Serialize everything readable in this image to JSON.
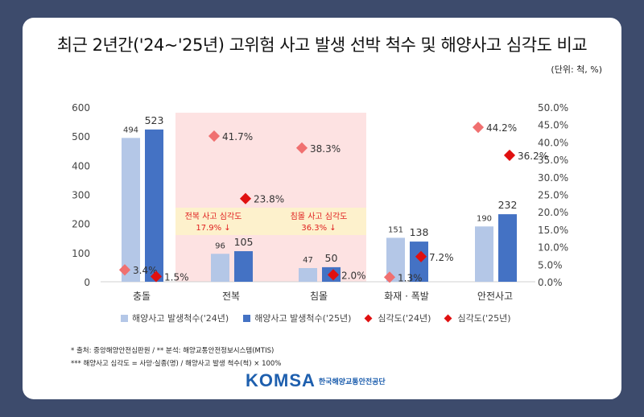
{
  "title": "최근 2년간('24~'25년) 고위험 사고 발생 선박 척수 및 해양사고 심각도 비교",
  "unit": "(단위: 척, %)",
  "chart_data": {
    "type": "bar",
    "categories": [
      "충돌",
      "전복",
      "침몰",
      "화재 · 폭발",
      "안전사고"
    ],
    "series": [
      {
        "name": "해양사고 발생척수('24년)",
        "axis": "left",
        "kind": "bar",
        "color": "#b4c7e7",
        "values": [
          494,
          96,
          47,
          151,
          190
        ]
      },
      {
        "name": "해양사고 발생척수('25년)",
        "axis": "left",
        "kind": "bar",
        "color": "#4472c4",
        "values": [
          523,
          105,
          50,
          138,
          232
        ]
      },
      {
        "name": "심각도('24년)",
        "axis": "right",
        "kind": "scatter",
        "color": "#f07070",
        "values": [
          3.4,
          41.7,
          38.3,
          1.3,
          44.2
        ]
      },
      {
        "name": "심각도('25년)",
        "axis": "right",
        "kind": "scatter",
        "color": "#e01010",
        "values": [
          1.5,
          23.8,
          2.0,
          7.2,
          36.2
        ]
      }
    ],
    "left_axis": {
      "ylim": [
        0,
        600
      ],
      "ticks": [
        "0",
        "100",
        "200",
        "300",
        "400",
        "500",
        "600"
      ]
    },
    "right_axis": {
      "ylim": [
        0,
        50
      ],
      "ticks": [
        "0.0%",
        "5.0%",
        "10.0%",
        "15.0%",
        "20.0%",
        "25.0%",
        "30.0%",
        "35.0%",
        "40.0%",
        "45.0%",
        "50.0%"
      ]
    },
    "annotations": [
      {
        "line1": "전복 사고 심각도",
        "line2": "17.9% ↓"
      },
      {
        "line1": "침몰 사고 심각도",
        "line2": "36.3% ↓"
      }
    ],
    "legend_position": "bottom"
  },
  "notes": [
    "* 출처: 중앙해양안전심판원  / ** 분석: 해양교통안전정보시스템(MTIS)",
    "*** 해양사고 심각도 = 사망·실종(명) / 해양사고 발생 척수(척) × 100%"
  ],
  "logo": {
    "brand": "KOMSA",
    "org": "한국해양교통안전공단"
  }
}
